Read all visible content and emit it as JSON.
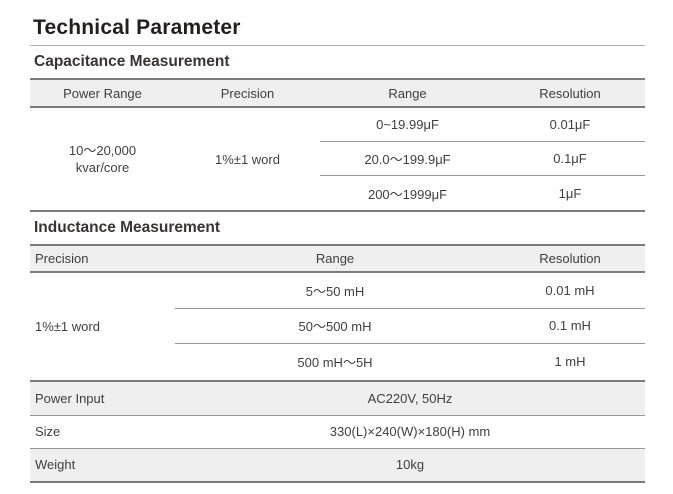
{
  "page": {
    "title": "Technical Parameter"
  },
  "capacitance": {
    "heading": "Capacitance Measurement",
    "columns": [
      "Power Range",
      "Precision",
      "Range",
      "Resolution"
    ],
    "power_range_lines": [
      "10～20,000",
      "kvar/core"
    ],
    "precision": "1%±1 word",
    "rows": [
      {
        "range": "0~19.99μF",
        "resolution": "0.01μF"
      },
      {
        "range": "20.0～199.9μF",
        "resolution": "0.1μF"
      },
      {
        "range": "200～1999μF",
        "resolution": "1μF"
      }
    ]
  },
  "inductance": {
    "heading": "Inductance Measurement",
    "columns": [
      "Precision",
      "Range",
      "Resolution"
    ],
    "precision": "1%±1 word",
    "rows": [
      {
        "range": "5～50 mH",
        "resolution": "0.01 mH"
      },
      {
        "range": "50～500 mH",
        "resolution": "0.1 mH"
      },
      {
        "range": "500 mH～5H",
        "resolution": "1 mH"
      }
    ]
  },
  "specs": [
    {
      "label": "Power Input",
      "value": "AC220V, 50Hz"
    },
    {
      "label": "Size",
      "value": "330(L)×240(W)×180(H) mm"
    },
    {
      "label": "Weight",
      "value": "10kg"
    }
  ],
  "colors": {
    "band_gray": "#efefef",
    "rule_dark": "#7c7c7c",
    "rule_light": "#979797",
    "title_text": "#241e1f",
    "body_text": "#3f3f3f"
  }
}
